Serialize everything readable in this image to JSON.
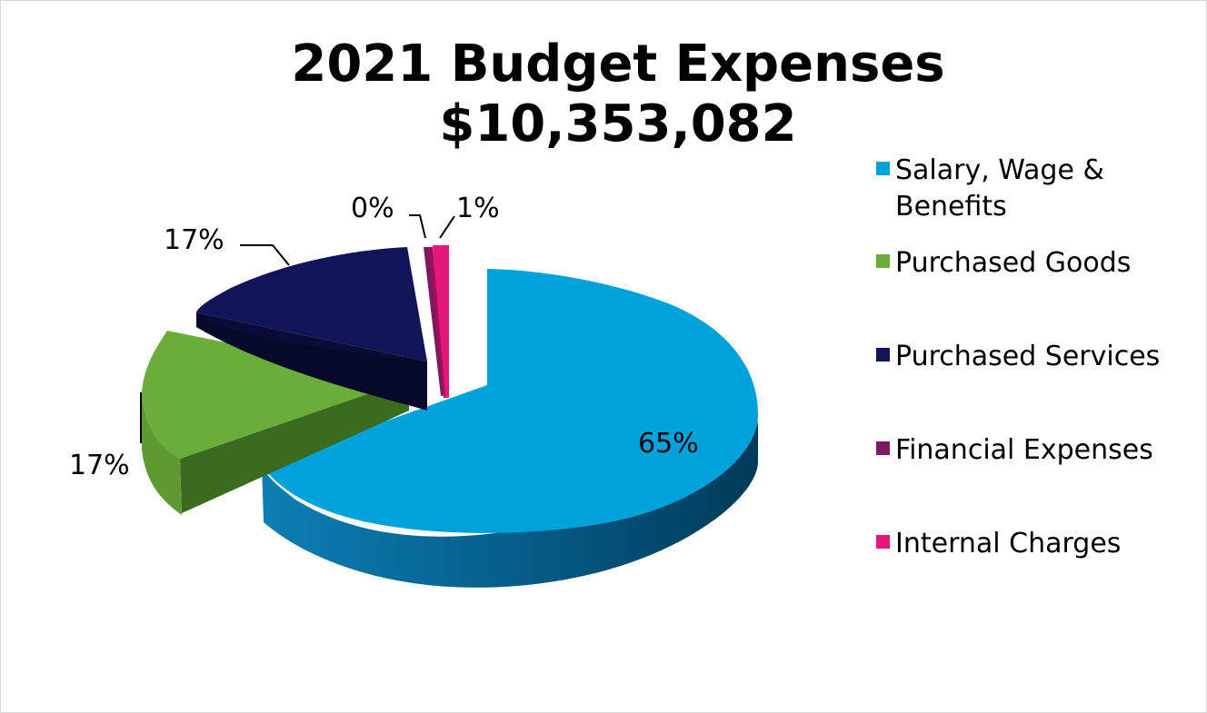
{
  "chart_data": {
    "type": "pie",
    "title": "2021 Budget Expenses",
    "subtitle": "$10,353,082",
    "categories": [
      "Salary, Wage & Benefits",
      "Purchased Goods",
      "Purchased Services",
      "Financial Expenses",
      "Internal Charges"
    ],
    "values": [
      65,
      17,
      17,
      0,
      1
    ],
    "labels": [
      "65%",
      "17%",
      "17%",
      "0%",
      "1%"
    ],
    "colors": [
      "#00a2dc",
      "#6aad3a",
      "#111456",
      "#7b1a63",
      "#e4177a"
    ],
    "legend_position": "right",
    "exploded": true,
    "three_d": true
  }
}
